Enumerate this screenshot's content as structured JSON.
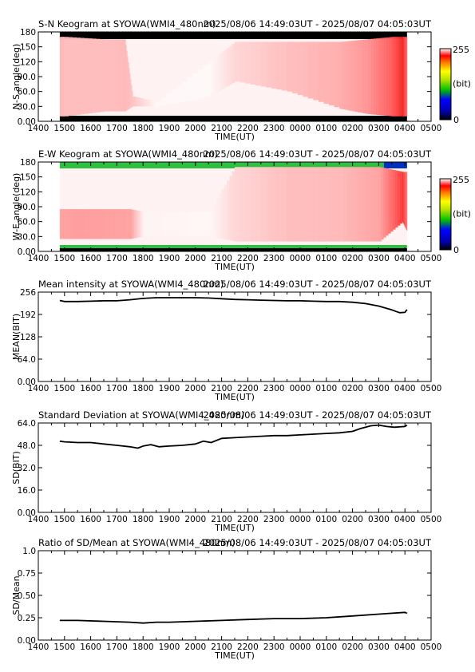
{
  "x_ticks": [
    "1400",
    "1500",
    "1600",
    "1700",
    "1800",
    "1900",
    "2000",
    "2100",
    "2200",
    "2300",
    "0000",
    "0100",
    "0200",
    "0300",
    "0400",
    "0500"
  ],
  "x_label": "TIME(UT)",
  "chart_data": [
    {
      "type": "heatmap",
      "title": "S-N Keogram at SYOWA(WMI4_480nm)",
      "subtitle": "2025/08/06 14:49:03UT - 2025/08/07 04:05:03UT",
      "xlabel": "TIME(UT)",
      "ylabel": "N-S angle(deg)",
      "yticks": [
        "0.00",
        "30.0",
        "60.0",
        "90.0",
        "120",
        "150",
        "180"
      ],
      "ylim": [
        0,
        180
      ],
      "xlim": [
        14.0,
        29.0
      ],
      "data_xrange": [
        14.82,
        28.08
      ],
      "colorbar": {
        "min_label": "0",
        "max_label": "255",
        "unit": "(bit)"
      },
      "intensity": [
        {
          "t": 14.82,
          "from": 10,
          "to": 170,
          "level": 0.3
        },
        {
          "t": 15.0,
          "from": 10,
          "to": 170,
          "level": 0.28
        },
        {
          "t": 16.5,
          "from": 20,
          "to": 165,
          "level": 0.28
        },
        {
          "t": 17.3,
          "from": 20,
          "to": 165,
          "level": 0.3
        },
        {
          "t": 17.6,
          "from": 30,
          "to": 50,
          "level": 0.25
        },
        {
          "t": 18.5,
          "from": 30,
          "to": 40,
          "level": 0.03
        },
        {
          "t": 20.5,
          "from": 50,
          "to": 120,
          "level": 0.03
        },
        {
          "t": 21.5,
          "from": 80,
          "to": 160,
          "level": 0.18
        },
        {
          "t": 23.5,
          "from": 60,
          "to": 160,
          "level": 0.28
        },
        {
          "t": 25.5,
          "from": 25,
          "to": 160,
          "level": 0.35
        },
        {
          "t": 26.5,
          "from": 15,
          "to": 165,
          "level": 0.45
        },
        {
          "t": 27.5,
          "from": 10,
          "to": 170,
          "level": 0.7
        },
        {
          "t": 27.9,
          "from": 10,
          "to": 170,
          "level": 0.9
        },
        {
          "t": 28.08,
          "from": 10,
          "to": 170,
          "level": 0.6
        }
      ]
    },
    {
      "type": "heatmap",
      "title": "E-W Keogram at SYOWA(WMI4_480nm)",
      "subtitle": "2025/08/06 14:49:03UT - 2025/08/07 04:05:03UT",
      "xlabel": "TIME(UT)",
      "ylabel": "W-E angle(deg)",
      "yticks": [
        "0.00",
        "30.0",
        "60.0",
        "90.0",
        "120",
        "150",
        "180"
      ],
      "ylim": [
        0,
        180
      ],
      "xlim": [
        14.0,
        29.0
      ],
      "data_xrange": [
        14.82,
        28.08
      ],
      "colorbar": {
        "min_label": "0",
        "max_label": "255",
        "unit": "(bit)"
      },
      "intensity": [
        {
          "t": 14.82,
          "from": 25,
          "to": 85,
          "level": 0.4
        },
        {
          "t": 15.5,
          "from": 25,
          "to": 85,
          "level": 0.42
        },
        {
          "t": 17.5,
          "from": 25,
          "to": 85,
          "level": 0.4
        },
        {
          "t": 18.0,
          "from": 30,
          "to": 80,
          "level": 0.05
        },
        {
          "t": 20.5,
          "from": 30,
          "to": 80,
          "level": 0.04
        },
        {
          "t": 21.5,
          "from": 20,
          "to": 170,
          "level": 0.18
        },
        {
          "t": 23.5,
          "from": 20,
          "to": 170,
          "level": 0.28
        },
        {
          "t": 25.5,
          "from": 20,
          "to": 170,
          "level": 0.3
        },
        {
          "t": 27.0,
          "from": 20,
          "to": 170,
          "level": 0.4
        },
        {
          "t": 27.9,
          "from": 60,
          "to": 160,
          "level": 0.85
        },
        {
          "t": 28.08,
          "from": 40,
          "to": 160,
          "level": 0.55
        }
      ]
    },
    {
      "type": "line",
      "title": "Mean intensity at SYOWA(WMI4_480nm)",
      "subtitle": "2025/08/06 14:49:03UT - 2025/08/07 04:05:03UT",
      "xlabel": "TIME(UT)",
      "ylabel": "MEAN(BIT)",
      "yticks": [
        "0.00",
        "64.0",
        "128",
        "192",
        "256"
      ],
      "ylim": [
        0,
        256
      ],
      "xlim": [
        14.0,
        29.0
      ],
      "x": [
        14.82,
        15.0,
        15.5,
        16.0,
        16.5,
        17.0,
        17.5,
        18.0,
        18.5,
        19.0,
        19.5,
        20.0,
        20.5,
        21.0,
        21.5,
        22.0,
        22.5,
        23.0,
        23.5,
        24.0,
        24.5,
        25.0,
        25.5,
        26.0,
        26.5,
        27.0,
        27.5,
        27.8,
        28.0,
        28.08
      ],
      "y": [
        232,
        229,
        229,
        230,
        231,
        231,
        234,
        238,
        240,
        240,
        240,
        240,
        239,
        237,
        235,
        234,
        233,
        232,
        231,
        231,
        230,
        229,
        229,
        227,
        223,
        216,
        205,
        197,
        198,
        206
      ]
    },
    {
      "type": "line",
      "title": "Standard Deviation at SYOWA(WMI4_480nm)",
      "subtitle": "2025/08/06 14:49:03UT - 2025/08/07 04:05:03UT",
      "xlabel": "TIME(UT)",
      "ylabel": "SD(BIT)",
      "yticks": [
        "0.00",
        "16.0",
        "32.0",
        "48.0",
        "64.0"
      ],
      "ylim": [
        0,
        64
      ],
      "xlim": [
        14.0,
        29.0
      ],
      "x": [
        14.82,
        15.0,
        15.5,
        16.0,
        16.5,
        17.0,
        17.5,
        17.8,
        18.0,
        18.3,
        18.6,
        19.0,
        19.5,
        20.0,
        20.3,
        20.6,
        21.0,
        21.5,
        22.0,
        22.5,
        23.0,
        23.5,
        24.0,
        24.5,
        25.0,
        25.5,
        26.0,
        26.3,
        26.7,
        27.0,
        27.3,
        27.6,
        28.0,
        28.08
      ],
      "y": [
        51.0,
        50.5,
        50.0,
        50.0,
        49.0,
        48.0,
        47.0,
        46.0,
        47.5,
        48.5,
        47.0,
        47.5,
        48.0,
        49.0,
        51.0,
        50.0,
        53.0,
        53.5,
        54.0,
        54.5,
        55.0,
        55.0,
        55.5,
        56.0,
        56.5,
        57.0,
        58.0,
        60.0,
        62.0,
        62.5,
        61.5,
        61.0,
        61.5,
        62.5
      ]
    },
    {
      "type": "line",
      "title": "Ratio of SD/Mean at SYOWA(WMI4_480nm)",
      "subtitle": "2025/08/06 14:49:03UT - 2025/08/07 04:05:03UT",
      "xlabel": "TIME(UT)",
      "ylabel": "SD/Mean",
      "yticks": [
        "0.00",
        "0.25",
        "0.50",
        "0.75",
        "1.0"
      ],
      "ylim": [
        0,
        1.0
      ],
      "xlim": [
        14.0,
        29.0
      ],
      "x": [
        14.82,
        15.5,
        16.5,
        17.5,
        18.0,
        18.5,
        19.0,
        20.0,
        21.0,
        22.0,
        23.0,
        24.0,
        25.0,
        26.0,
        27.0,
        27.5,
        28.0,
        28.08
      ],
      "y": [
        0.22,
        0.22,
        0.21,
        0.2,
        0.19,
        0.2,
        0.2,
        0.21,
        0.22,
        0.23,
        0.24,
        0.24,
        0.25,
        0.27,
        0.29,
        0.3,
        0.31,
        0.3
      ]
    }
  ]
}
